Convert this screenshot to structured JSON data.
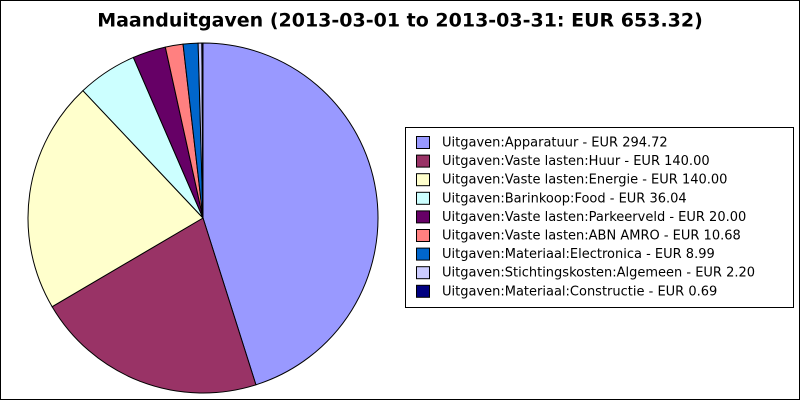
{
  "chart_data": {
    "type": "pie",
    "title": "Maanduitgaven (2013-03-01 to 2013-03-31: EUR 653.32)",
    "categories": [
      "Uitgaven:Apparatuur - EUR 294.72",
      "Uitgaven:Vaste lasten:Huur - EUR 140.00",
      "Uitgaven:Vaste lasten:Energie - EUR 140.00",
      "Uitgaven:Barinkoop:Food - EUR 36.04",
      "Uitgaven:Vaste lasten:Parkeerveld - EUR 20.00",
      "Uitgaven:Vaste lasten:ABN AMRO - EUR 10.68",
      "Uitgaven:Materiaal:Electronica - EUR 8.99",
      "Uitgaven:Stichtingskosten:Algemeen - EUR 2.20",
      "Uitgaven:Materiaal:Constructie - EUR 0.69"
    ],
    "values": [
      294.72,
      140.0,
      140.0,
      36.04,
      20.0,
      10.68,
      8.99,
      2.2,
      0.69
    ],
    "colors": [
      "#9999ff",
      "#993366",
      "#ffffcc",
      "#ccffff",
      "#660066",
      "#ff8080",
      "#0066cc",
      "#ccccff",
      "#000080"
    ]
  }
}
